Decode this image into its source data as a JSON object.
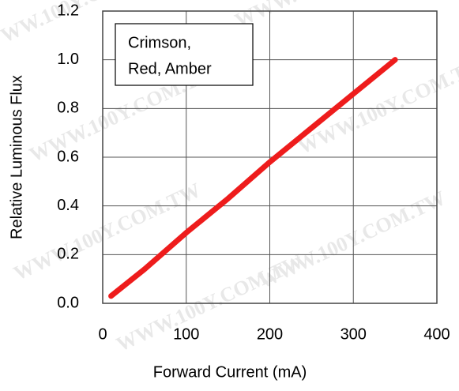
{
  "chart_data": {
    "type": "line",
    "x_label": "Forward Current (mA)",
    "y_label": "Relative Luminous Flux",
    "annotation": [
      "Crimson,",
      "Red, Amber"
    ],
    "watermark": "WWW.100Y.COM.TW",
    "series": [
      {
        "color": "#ee1c1c",
        "x": [
          10,
          50,
          100,
          150,
          200,
          250,
          300,
          350
        ],
        "values": [
          0.03,
          0.14,
          0.29,
          0.43,
          0.58,
          0.72,
          0.86,
          1.0
        ]
      }
    ],
    "xlim": [
      0,
      400
    ],
    "xticks": [
      0,
      100,
      200,
      300,
      400
    ],
    "ylim": [
      0,
      1.2
    ],
    "yticks": [
      {
        "value": 0,
        "label": "0.0"
      },
      0.2,
      0.4,
      0.6,
      0.8,
      {
        "value": 1,
        "label": "1.0"
      },
      1.2
    ],
    "grid": true
  }
}
